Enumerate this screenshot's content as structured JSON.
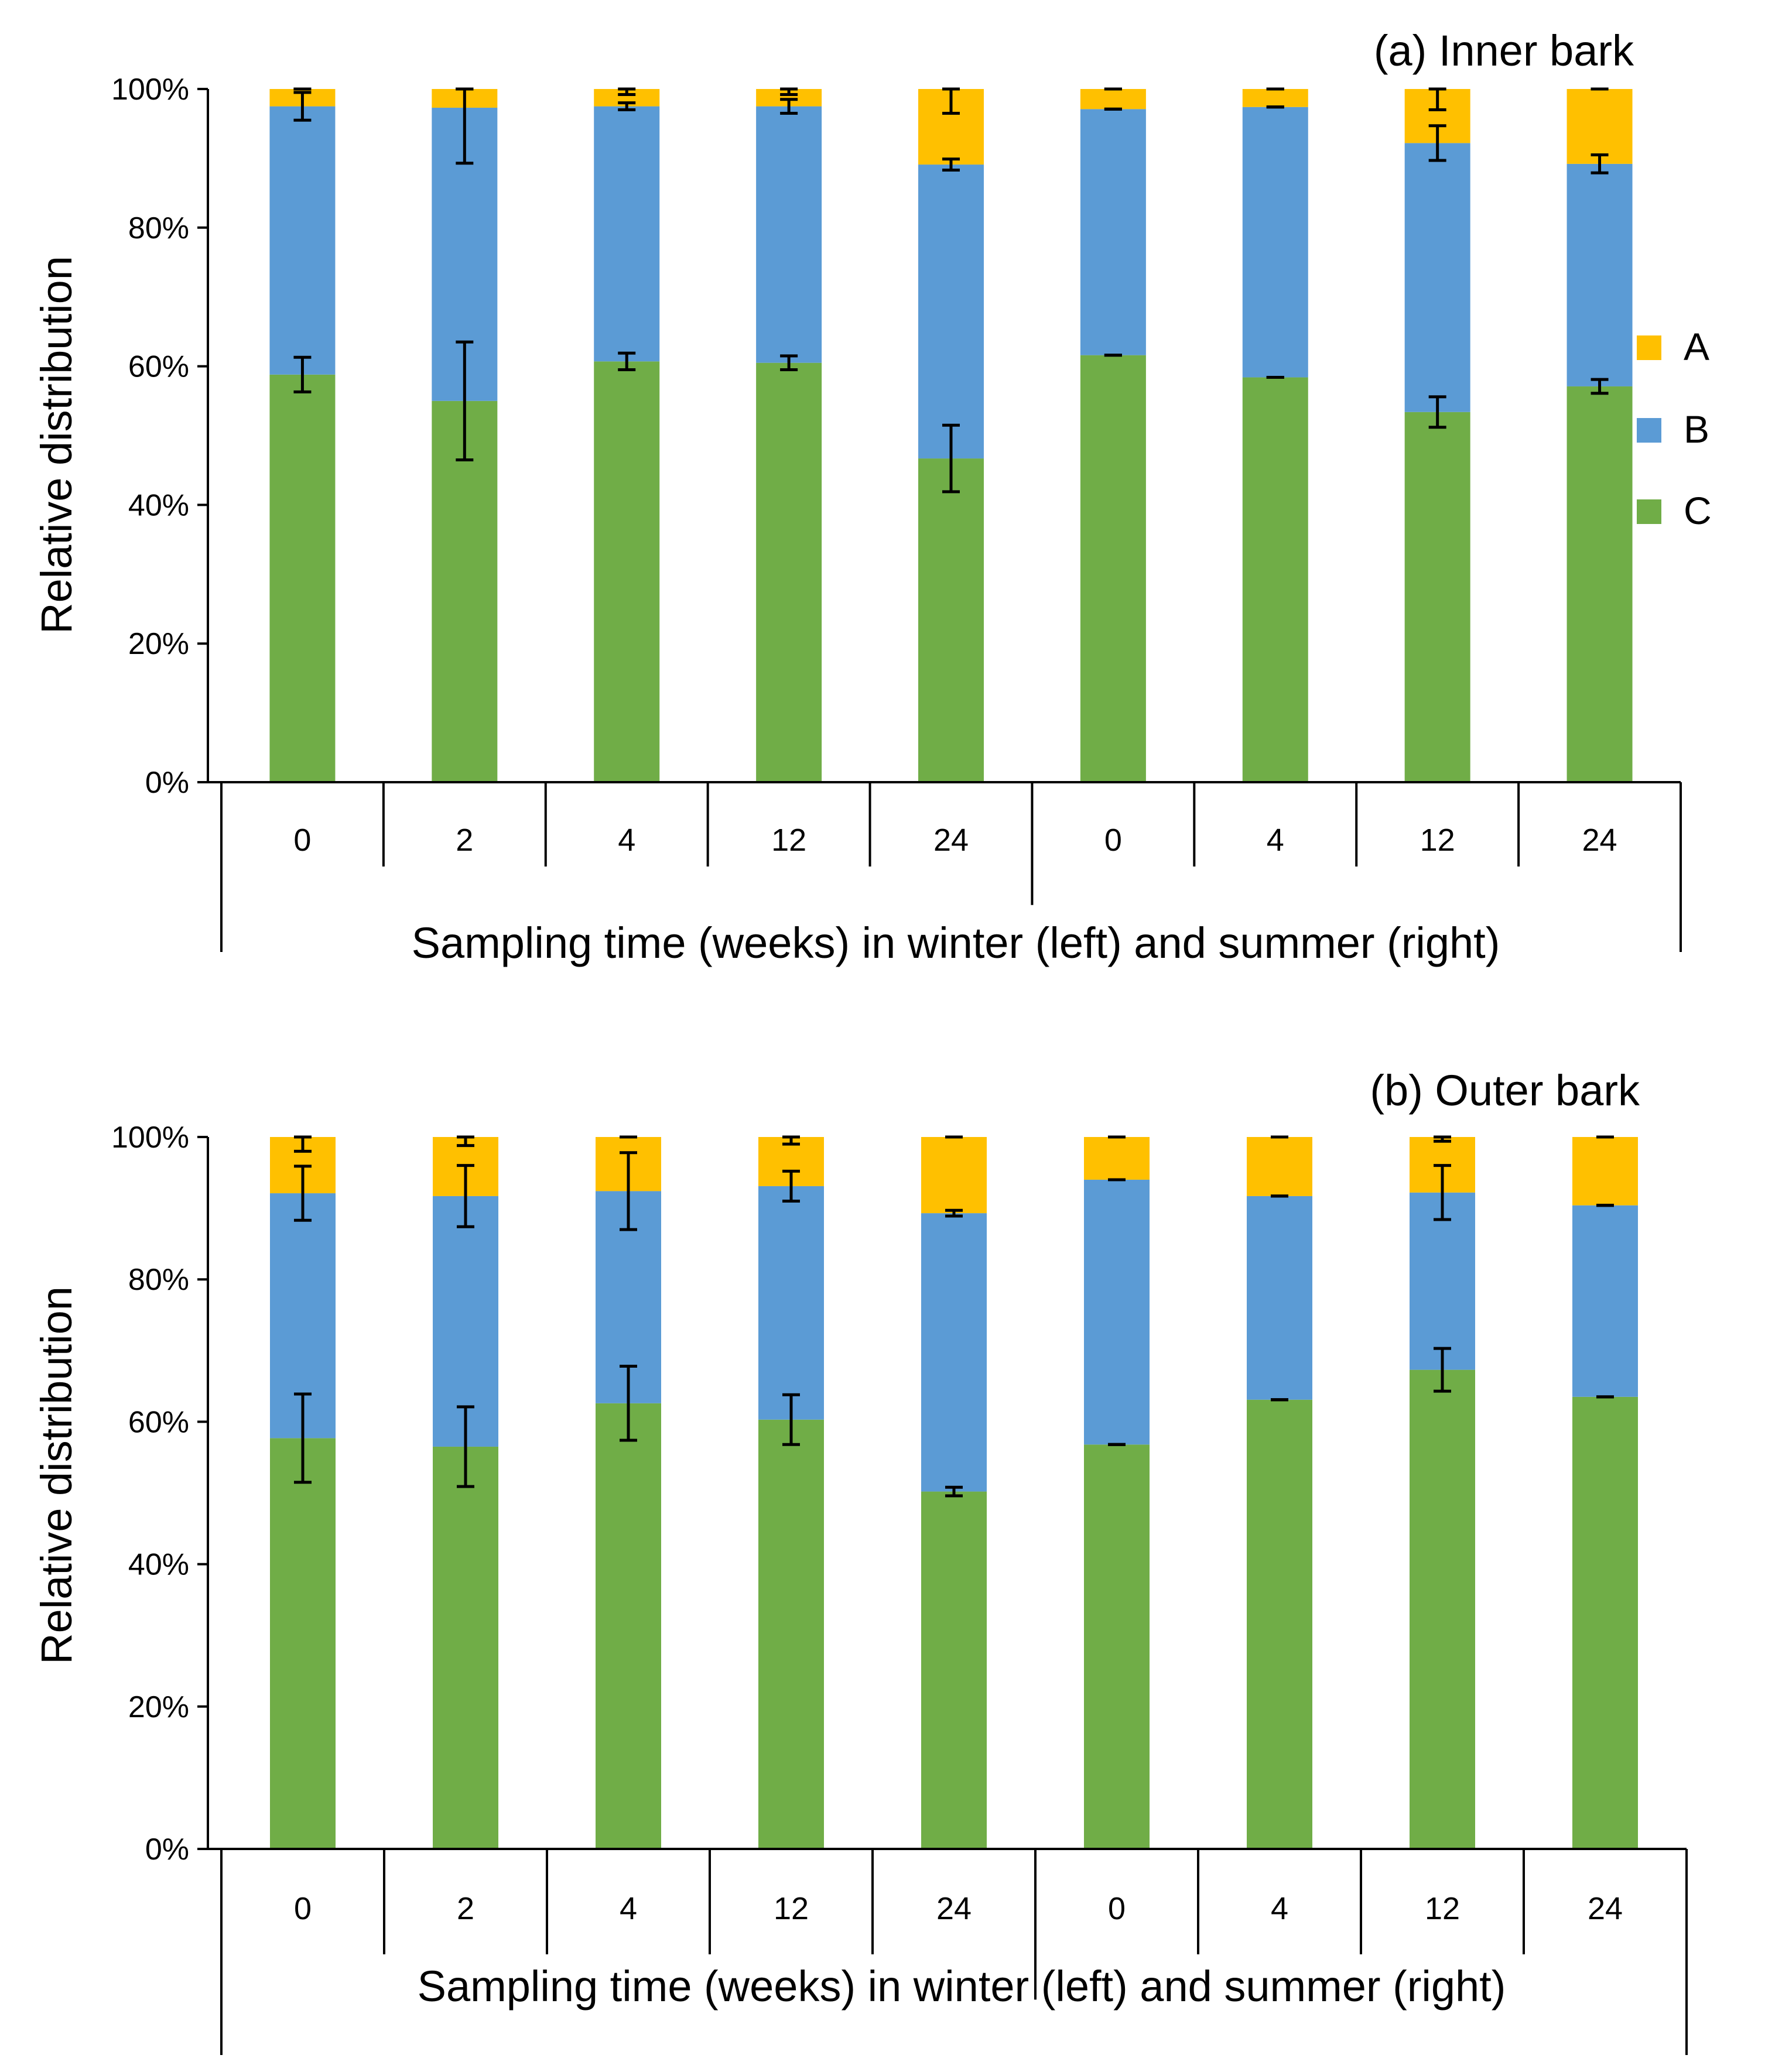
{
  "chart_data": [
    {
      "type": "bar",
      "stacked": true,
      "title": "(a) Inner bark",
      "xlabel": "Sampling time (weeks) in winter (left) and summer (right)",
      "ylabel": "Relative distribution",
      "ylim": [
        0,
        100
      ],
      "yticks": [
        "0%",
        "20%",
        "40%",
        "60%",
        "80%",
        "100%"
      ],
      "categories": [
        "0",
        "2",
        "4",
        "12",
        "24",
        "0",
        "4",
        "12",
        "24"
      ],
      "groups": [
        {
          "name": "winter",
          "count": 5
        },
        {
          "name": "summer",
          "count": 4
        }
      ],
      "legend_position": "right",
      "series": [
        {
          "name": "C",
          "color": "#70AD47",
          "values": [
            58.8,
            55.0,
            60.7,
            60.5,
            46.7,
            61.6,
            58.4,
            53.4,
            57.1
          ],
          "errors": [
            2.5,
            8.5,
            1.2,
            1.0,
            4.8,
            0.0,
            0.0,
            2.2,
            1.0
          ]
        },
        {
          "name": "B",
          "color": "#5B9BD5",
          "values": [
            38.7,
            42.3,
            36.8,
            37.0,
            42.4,
            35.5,
            39.0,
            38.8,
            32.1
          ],
          "errors": [
            2.0,
            8.0,
            0.5,
            1.0,
            0.8,
            0.0,
            0.0,
            2.5,
            1.3
          ]
        },
        {
          "name": "A",
          "color": "#FFC000",
          "values": [
            2.5,
            2.7,
            2.5,
            2.5,
            10.9,
            2.9,
            2.6,
            7.8,
            10.8
          ],
          "errors": [
            0.0,
            0.0,
            0.8,
            0.8,
            3.5,
            0.0,
            0.0,
            3.0,
            0.0
          ]
        }
      ]
    },
    {
      "type": "bar",
      "stacked": true,
      "title": "(b) Outer bark",
      "xlabel": "Sampling time (weeks) in winter (left) and summer (right)",
      "ylabel": "Relative distribution",
      "ylim": [
        0,
        100
      ],
      "yticks": [
        "0%",
        "20%",
        "40%",
        "60%",
        "80%",
        "100%"
      ],
      "categories": [
        "0",
        "2",
        "4",
        "12",
        "24",
        "0",
        "4",
        "12",
        "24"
      ],
      "groups": [
        {
          "name": "winter",
          "count": 5
        },
        {
          "name": "summer",
          "count": 4
        }
      ],
      "series": [
        {
          "name": "C",
          "color": "#70AD47",
          "values": [
            57.7,
            56.5,
            62.6,
            60.3,
            50.2,
            56.8,
            63.1,
            67.3,
            63.5
          ],
          "errors": [
            6.2,
            5.6,
            5.2,
            3.5,
            0.6,
            0.0,
            0.0,
            3.0,
            0.0
          ]
        },
        {
          "name": "B",
          "color": "#5B9BD5",
          "values": [
            34.4,
            35.2,
            29.8,
            32.8,
            39.1,
            37.2,
            28.6,
            24.9,
            26.9
          ],
          "errors": [
            3.8,
            4.3,
            5.4,
            2.1,
            0.4,
            0.0,
            0.0,
            3.8,
            0.0
          ]
        },
        {
          "name": "A",
          "color": "#FFC000",
          "values": [
            7.9,
            8.3,
            7.6,
            6.9,
            10.7,
            6.0,
            8.3,
            7.8,
            9.6
          ],
          "errors": [
            2.0,
            1.2,
            0.0,
            1.0,
            0.0,
            0.0,
            0.0,
            0.6,
            0.0
          ]
        }
      ]
    }
  ]
}
